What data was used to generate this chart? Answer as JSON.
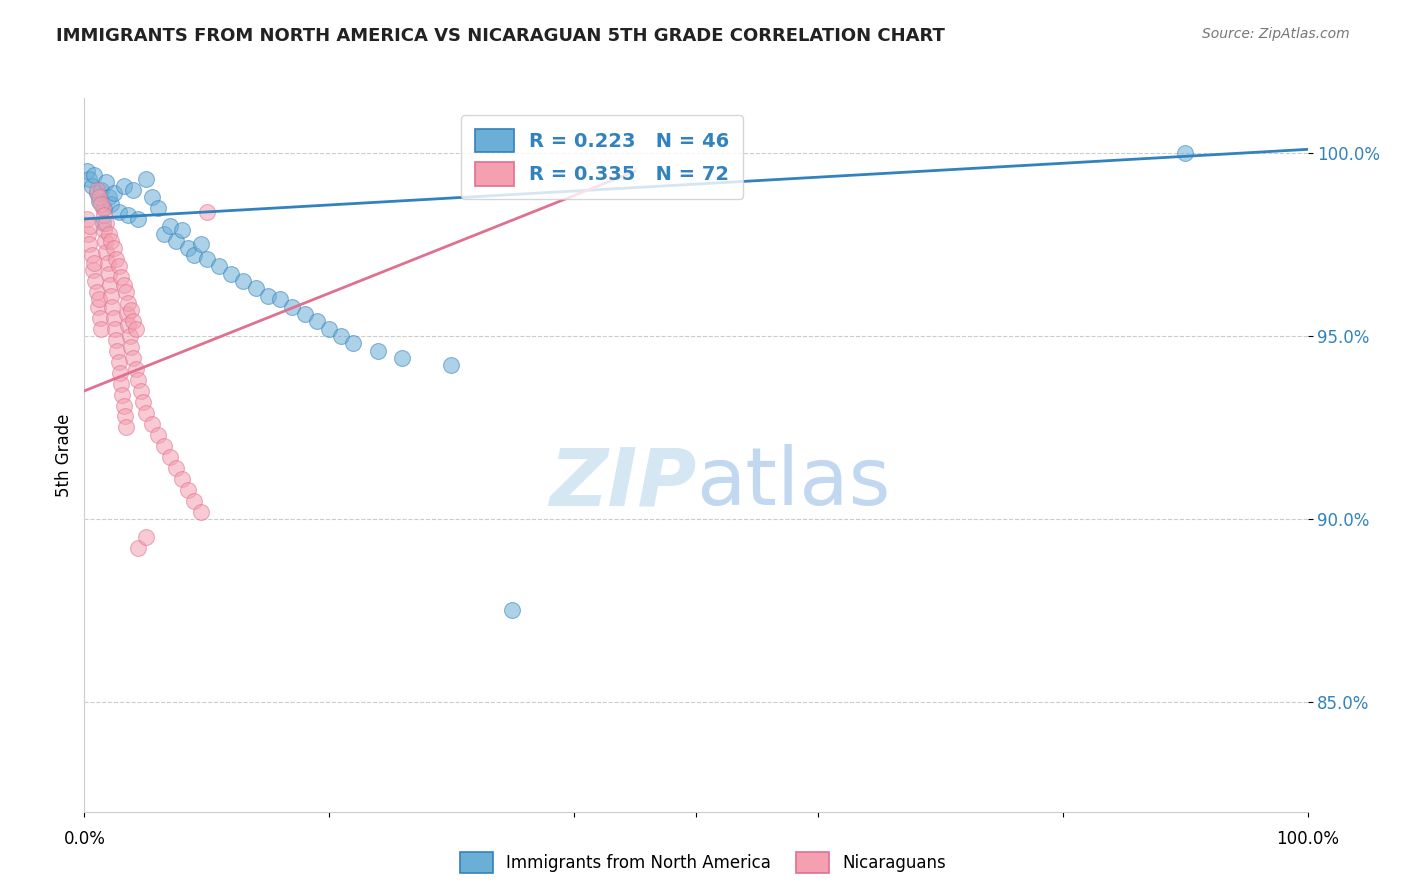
{
  "title": "IMMIGRANTS FROM NORTH AMERICA VS NICARAGUAN 5TH GRADE CORRELATION CHART",
  "source": "Source: ZipAtlas.com",
  "ylabel": "5th Grade",
  "yticks": [
    100.0,
    95.0,
    90.0,
    85.0
  ],
  "xlim": [
    0.0,
    1.0
  ],
  "ylim": [
    82.0,
    101.5
  ],
  "legend_blue_label": "R = 0.223   N = 46",
  "legend_pink_label": "R = 0.335   N = 72",
  "blue_color": "#6baed6",
  "pink_color": "#f4a0b0",
  "blue_line_color": "#3182bd",
  "pink_line_color": "#e07090",
  "watermark_zip": "ZIP",
  "watermark_atlas": "atlas",
  "blue_scatter": [
    [
      0.002,
      99.5
    ],
    [
      0.004,
      99.3
    ],
    [
      0.006,
      99.1
    ],
    [
      0.008,
      99.4
    ],
    [
      0.01,
      98.9
    ],
    [
      0.012,
      98.7
    ],
    [
      0.014,
      99.0
    ],
    [
      0.016,
      98.5
    ],
    [
      0.018,
      99.2
    ],
    [
      0.02,
      98.8
    ],
    [
      0.022,
      98.6
    ],
    [
      0.024,
      98.9
    ],
    [
      0.028,
      98.4
    ],
    [
      0.032,
      99.1
    ],
    [
      0.036,
      98.3
    ],
    [
      0.04,
      99.0
    ],
    [
      0.044,
      98.2
    ],
    [
      0.05,
      99.3
    ],
    [
      0.055,
      98.8
    ],
    [
      0.06,
      98.5
    ],
    [
      0.065,
      97.8
    ],
    [
      0.07,
      98.0
    ],
    [
      0.075,
      97.6
    ],
    [
      0.08,
      97.9
    ],
    [
      0.085,
      97.4
    ],
    [
      0.09,
      97.2
    ],
    [
      0.095,
      97.5
    ],
    [
      0.1,
      97.1
    ],
    [
      0.11,
      96.9
    ],
    [
      0.12,
      96.7
    ],
    [
      0.13,
      96.5
    ],
    [
      0.14,
      96.3
    ],
    [
      0.15,
      96.1
    ],
    [
      0.16,
      96.0
    ],
    [
      0.17,
      95.8
    ],
    [
      0.18,
      95.6
    ],
    [
      0.19,
      95.4
    ],
    [
      0.2,
      95.2
    ],
    [
      0.21,
      95.0
    ],
    [
      0.22,
      94.8
    ],
    [
      0.24,
      94.6
    ],
    [
      0.26,
      94.4
    ],
    [
      0.3,
      94.2
    ],
    [
      0.35,
      87.5
    ],
    [
      0.9,
      100.0
    ],
    [
      0.015,
      98.1
    ]
  ],
  "pink_scatter": [
    [
      0.002,
      98.2
    ],
    [
      0.003,
      97.8
    ],
    [
      0.004,
      97.5
    ],
    [
      0.005,
      98.0
    ],
    [
      0.006,
      97.2
    ],
    [
      0.007,
      96.8
    ],
    [
      0.008,
      97.0
    ],
    [
      0.009,
      96.5
    ],
    [
      0.01,
      96.2
    ],
    [
      0.011,
      95.8
    ],
    [
      0.012,
      96.0
    ],
    [
      0.013,
      95.5
    ],
    [
      0.014,
      95.2
    ],
    [
      0.015,
      98.5
    ],
    [
      0.016,
      97.9
    ],
    [
      0.017,
      97.6
    ],
    [
      0.018,
      97.3
    ],
    [
      0.019,
      97.0
    ],
    [
      0.02,
      96.7
    ],
    [
      0.021,
      96.4
    ],
    [
      0.022,
      96.1
    ],
    [
      0.023,
      95.8
    ],
    [
      0.024,
      95.5
    ],
    [
      0.025,
      95.2
    ],
    [
      0.026,
      94.9
    ],
    [
      0.027,
      94.6
    ],
    [
      0.028,
      94.3
    ],
    [
      0.029,
      94.0
    ],
    [
      0.03,
      93.7
    ],
    [
      0.031,
      93.4
    ],
    [
      0.032,
      93.1
    ],
    [
      0.033,
      92.8
    ],
    [
      0.034,
      92.5
    ],
    [
      0.035,
      95.6
    ],
    [
      0.036,
      95.3
    ],
    [
      0.037,
      95.0
    ],
    [
      0.038,
      94.7
    ],
    [
      0.04,
      94.4
    ],
    [
      0.042,
      94.1
    ],
    [
      0.044,
      93.8
    ],
    [
      0.046,
      93.5
    ],
    [
      0.048,
      93.2
    ],
    [
      0.05,
      92.9
    ],
    [
      0.055,
      92.6
    ],
    [
      0.06,
      92.3
    ],
    [
      0.065,
      92.0
    ],
    [
      0.07,
      91.7
    ],
    [
      0.075,
      91.4
    ],
    [
      0.08,
      91.1
    ],
    [
      0.085,
      90.8
    ],
    [
      0.09,
      90.5
    ],
    [
      0.095,
      90.2
    ],
    [
      0.1,
      98.4
    ],
    [
      0.01,
      99.0
    ],
    [
      0.012,
      98.8
    ],
    [
      0.014,
      98.6
    ],
    [
      0.016,
      98.3
    ],
    [
      0.018,
      98.1
    ],
    [
      0.02,
      97.8
    ],
    [
      0.022,
      97.6
    ],
    [
      0.024,
      97.4
    ],
    [
      0.026,
      97.1
    ],
    [
      0.028,
      96.9
    ],
    [
      0.03,
      96.6
    ],
    [
      0.032,
      96.4
    ],
    [
      0.034,
      96.2
    ],
    [
      0.036,
      95.9
    ],
    [
      0.038,
      95.7
    ],
    [
      0.04,
      95.4
    ],
    [
      0.042,
      95.2
    ],
    [
      0.044,
      89.2
    ],
    [
      0.05,
      89.5
    ]
  ],
  "blue_trendline": [
    [
      0.0,
      98.2
    ],
    [
      1.0,
      100.1
    ]
  ],
  "pink_trendline": [
    [
      0.0,
      93.5
    ],
    [
      0.45,
      99.5
    ]
  ]
}
